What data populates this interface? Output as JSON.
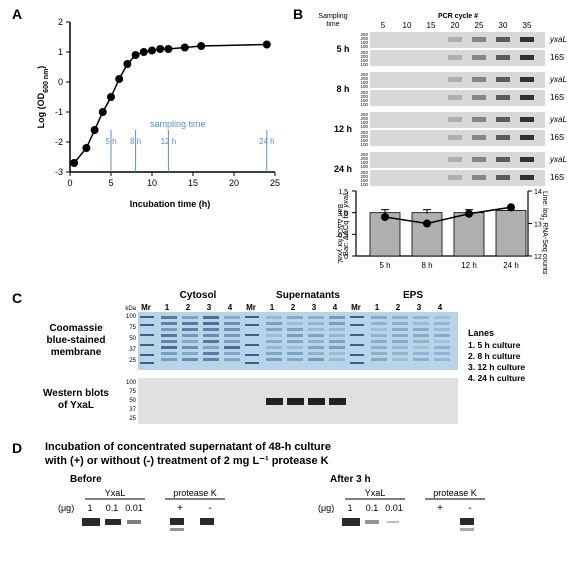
{
  "panelA": {
    "label": "A",
    "xlabel": "Incubation time (h)",
    "ylabel": "Log (OD₆₀₀ ₙₘ)",
    "sampling_label": "sampling time",
    "xticks": [
      0,
      5,
      8,
      10,
      12,
      15,
      20,
      24
    ],
    "xtick_labels": [
      "0",
      "5",
      "",
      "10",
      "",
      "15",
      "20",
      ""
    ],
    "yticks": [
      -3,
      -2,
      -1,
      0,
      1,
      2
    ],
    "points_x": [
      0.5,
      2,
      3,
      4,
      5,
      6,
      7,
      8,
      9,
      10,
      11,
      12,
      14,
      16,
      24
    ],
    "points_y": [
      -2.7,
      -2.2,
      -1.6,
      -1.0,
      -0.5,
      0.1,
      0.6,
      0.9,
      1.0,
      1.05,
      1.1,
      1.1,
      1.15,
      1.2,
      1.25
    ],
    "sampling_times": [
      "5 h",
      "8 h",
      "12 h",
      "24 h"
    ],
    "sampling_x": [
      5,
      8,
      12,
      24
    ],
    "sampling_color": "#5a8fc8",
    "point_color": "#000000",
    "line_color": "#000000"
  },
  "panelB": {
    "label": "B",
    "header_left": "Sampling\ntime",
    "header_right": "PCR cycle #",
    "cycles": [
      "5",
      "10",
      "15",
      "20",
      "25",
      "30",
      "35"
    ],
    "rows": [
      "5 h",
      "8 h",
      "12 h",
      "24 h"
    ],
    "row_genes": [
      "yxaL",
      "16S"
    ],
    "bp_labels": [
      "250",
      "200",
      "150",
      "100",
      "250",
      "200",
      "150",
      "100"
    ],
    "bar_ylabel": "Bar: ΔΔCq for yxaL",
    "line_ylabel": "Line: log₂ RNA-Seq counts",
    "bar_yticks": [
      "0",
      "0.5",
      "1.0",
      "1.5"
    ],
    "line_yticks": [
      "12",
      "13",
      "14"
    ],
    "bar_x": [
      "5 h",
      "8 h",
      "12 h",
      "24 h"
    ],
    "bar_values": [
      1.0,
      1.0,
      1.0,
      1.05
    ],
    "line_values": [
      13.2,
      13.0,
      13.3,
      13.5
    ],
    "bar_color": "#b0b0b0",
    "point_color": "#000000",
    "gel_bg": "#d8d8d8"
  },
  "panelC": {
    "label": "C",
    "headers": [
      "Cytosol",
      "Supernatants",
      "EPS"
    ],
    "lane_nums": [
      "Mr",
      "1",
      "2",
      "3",
      "4",
      "Mr",
      "1",
      "2",
      "3",
      "4",
      "Mr",
      "1",
      "2",
      "3",
      "4"
    ],
    "kda_labels": [
      "kDa",
      "100",
      "75",
      "50",
      "37",
      "25",
      "100",
      "75",
      "50",
      "37",
      "25"
    ],
    "left_label_top": "Coomassie\nblue-stained\nmembrane",
    "left_label_bot": "Western blots\nof YxaL",
    "legend_title": "Lanes",
    "legend": [
      "1.  5 h culture",
      "2.  8 h culture",
      "3.  12 h culture",
      "4.  24 h culture"
    ]
  },
  "panelD": {
    "label": "D",
    "title": "Incubation of concentrated supernatant of 48-h culture\nwith (+) or without (-) treatment of 2 mg L⁻¹ protease K",
    "before": "Before",
    "after": "After 3 h",
    "yxal": "YxaL",
    "protk": "protease K",
    "ug": "(μg)",
    "doses": [
      "1",
      "0.1",
      "0.01"
    ],
    "pm": [
      "+",
      "-"
    ]
  }
}
